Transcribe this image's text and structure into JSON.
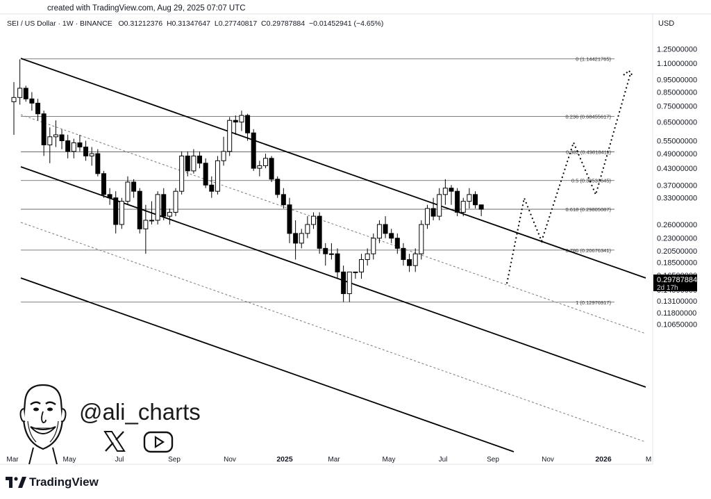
{
  "header": {
    "created": "created with TradingView.com, Aug 29, 2025 07:07 UTC",
    "symbol": "SEI / US Dollar · 1W · BINANCE",
    "open": "O0.31212376",
    "high": "H0.31347647",
    "low": "L0.27740817",
    "close": "C0.29787884",
    "change": "−0.01452941 (−4.65%)",
    "currency": "USD"
  },
  "branding": {
    "handle": "@ali_charts",
    "logo_text": "TradingView",
    "icons": [
      "x-logo-icon",
      "youtube-icon",
      "caricature-avatar"
    ]
  },
  "colors": {
    "up_body": "#ffffff",
    "down_body": "#000000",
    "price_tag": "#000000",
    "channel": "#000000"
  },
  "chart_data": {
    "type": "candlestick",
    "scale": "log",
    "y_ticks": [
      "1.25000000",
      "1.10000000",
      "0.95000000",
      "0.85000000",
      "0.75000000",
      "0.65000000",
      "0.55000000",
      "0.49000000",
      "0.43000000",
      "0.37000000",
      "0.33000000",
      "0.29787884",
      "0.26000000",
      "0.23000000",
      "0.20500000",
      "0.18500000",
      "0.16500000",
      "0.14500000",
      "0.13100000",
      "0.11800000",
      "0.10650000"
    ],
    "x_ticks": [
      "Mar",
      "May",
      "Jul",
      "Sep",
      "Nov",
      "2025",
      "Mar",
      "May",
      "Jul",
      "Sep",
      "Nov",
      "2026",
      "M"
    ],
    "fib_levels": [
      {
        "label": "0 (1.14421765)",
        "value": 1.14421765
      },
      {
        "label": "0.236 (0.68455617)",
        "value": 0.68455617
      },
      {
        "label": "0.382 (0.49818411)",
        "value": 0.49818411
      },
      {
        "label": "0.5 (0.38533645)",
        "value": 0.38533645
      },
      {
        "label": "0.618 (0.29805087)",
        "value": 0.29805087
      },
      {
        "label": "0.786 (0.20676341)",
        "value": 0.20676341
      },
      {
        "label": "1 (0.12976917)",
        "value": 0.12976917
      }
    ],
    "last_price": {
      "value": "0.29787884",
      "countdown": "2d 17h"
    },
    "candles": [
      {
        "o": 0.78,
        "h": 0.93,
        "l": 0.58,
        "c": 0.81
      },
      {
        "o": 0.81,
        "h": 1.14,
        "l": 0.76,
        "c": 0.88
      },
      {
        "o": 0.88,
        "h": 0.9,
        "l": 0.78,
        "c": 0.8
      },
      {
        "o": 0.8,
        "h": 0.85,
        "l": 0.72,
        "c": 0.77
      },
      {
        "o": 0.77,
        "h": 0.8,
        "l": 0.66,
        "c": 0.7
      },
      {
        "o": 0.7,
        "h": 0.72,
        "l": 0.48,
        "c": 0.53
      },
      {
        "o": 0.53,
        "h": 0.62,
        "l": 0.45,
        "c": 0.57
      },
      {
        "o": 0.57,
        "h": 0.66,
        "l": 0.52,
        "c": 0.58
      },
      {
        "o": 0.58,
        "h": 0.61,
        "l": 0.51,
        "c": 0.55
      },
      {
        "o": 0.55,
        "h": 0.58,
        "l": 0.47,
        "c": 0.5
      },
      {
        "o": 0.5,
        "h": 0.56,
        "l": 0.47,
        "c": 0.54
      },
      {
        "o": 0.54,
        "h": 0.58,
        "l": 0.5,
        "c": 0.52
      },
      {
        "o": 0.52,
        "h": 0.55,
        "l": 0.46,
        "c": 0.48
      },
      {
        "o": 0.48,
        "h": 0.52,
        "l": 0.44,
        "c": 0.49
      },
      {
        "o": 0.49,
        "h": 0.51,
        "l": 0.4,
        "c": 0.41
      },
      {
        "o": 0.41,
        "h": 0.42,
        "l": 0.33,
        "c": 0.34
      },
      {
        "o": 0.34,
        "h": 0.36,
        "l": 0.31,
        "c": 0.33
      },
      {
        "o": 0.33,
        "h": 0.35,
        "l": 0.24,
        "c": 0.26
      },
      {
        "o": 0.26,
        "h": 0.33,
        "l": 0.25,
        "c": 0.32
      },
      {
        "o": 0.32,
        "h": 0.4,
        "l": 0.31,
        "c": 0.38
      },
      {
        "o": 0.38,
        "h": 0.39,
        "l": 0.33,
        "c": 0.35
      },
      {
        "o": 0.35,
        "h": 0.36,
        "l": 0.24,
        "c": 0.25
      },
      {
        "o": 0.25,
        "h": 0.31,
        "l": 0.2,
        "c": 0.27
      },
      {
        "o": 0.27,
        "h": 0.32,
        "l": 0.26,
        "c": 0.27
      },
      {
        "o": 0.27,
        "h": 0.35,
        "l": 0.26,
        "c": 0.34
      },
      {
        "o": 0.34,
        "h": 0.36,
        "l": 0.27,
        "c": 0.28
      },
      {
        "o": 0.28,
        "h": 0.3,
        "l": 0.26,
        "c": 0.29
      },
      {
        "o": 0.29,
        "h": 0.36,
        "l": 0.28,
        "c": 0.35
      },
      {
        "o": 0.35,
        "h": 0.5,
        "l": 0.34,
        "c": 0.48
      },
      {
        "o": 0.48,
        "h": 0.5,
        "l": 0.4,
        "c": 0.42
      },
      {
        "o": 0.42,
        "h": 0.51,
        "l": 0.41,
        "c": 0.48
      },
      {
        "o": 0.48,
        "h": 0.5,
        "l": 0.43,
        "c": 0.45
      },
      {
        "o": 0.45,
        "h": 0.47,
        "l": 0.36,
        "c": 0.37
      },
      {
        "o": 0.37,
        "h": 0.4,
        "l": 0.33,
        "c": 0.35
      },
      {
        "o": 0.35,
        "h": 0.48,
        "l": 0.34,
        "c": 0.46
      },
      {
        "o": 0.46,
        "h": 0.57,
        "l": 0.44,
        "c": 0.5
      },
      {
        "o": 0.5,
        "h": 0.68,
        "l": 0.48,
        "c": 0.66
      },
      {
        "o": 0.66,
        "h": 0.69,
        "l": 0.58,
        "c": 0.65
      },
      {
        "o": 0.65,
        "h": 0.72,
        "l": 0.6,
        "c": 0.69
      },
      {
        "o": 0.69,
        "h": 0.7,
        "l": 0.55,
        "c": 0.59
      },
      {
        "o": 0.59,
        "h": 0.61,
        "l": 0.42,
        "c": 0.43
      },
      {
        "o": 0.43,
        "h": 0.46,
        "l": 0.4,
        "c": 0.44
      },
      {
        "o": 0.44,
        "h": 0.49,
        "l": 0.43,
        "c": 0.47
      },
      {
        "o": 0.47,
        "h": 0.48,
        "l": 0.38,
        "c": 0.39
      },
      {
        "o": 0.39,
        "h": 0.4,
        "l": 0.33,
        "c": 0.34
      },
      {
        "o": 0.34,
        "h": 0.36,
        "l": 0.3,
        "c": 0.31
      },
      {
        "o": 0.31,
        "h": 0.33,
        "l": 0.22,
        "c": 0.24
      },
      {
        "o": 0.24,
        "h": 0.27,
        "l": 0.19,
        "c": 0.22
      },
      {
        "o": 0.22,
        "h": 0.25,
        "l": 0.21,
        "c": 0.24
      },
      {
        "o": 0.24,
        "h": 0.28,
        "l": 0.23,
        "c": 0.26
      },
      {
        "o": 0.26,
        "h": 0.29,
        "l": 0.25,
        "c": 0.28
      },
      {
        "o": 0.28,
        "h": 0.29,
        "l": 0.2,
        "c": 0.21
      },
      {
        "o": 0.21,
        "h": 0.22,
        "l": 0.18,
        "c": 0.2
      },
      {
        "o": 0.2,
        "h": 0.22,
        "l": 0.19,
        "c": 0.2
      },
      {
        "o": 0.2,
        "h": 0.21,
        "l": 0.16,
        "c": 0.17
      },
      {
        "o": 0.17,
        "h": 0.18,
        "l": 0.13,
        "c": 0.14
      },
      {
        "o": 0.14,
        "h": 0.17,
        "l": 0.13,
        "c": 0.17
      },
      {
        "o": 0.17,
        "h": 0.17,
        "l": 0.16,
        "c": 0.17
      },
      {
        "o": 0.17,
        "h": 0.2,
        "l": 0.16,
        "c": 0.19
      },
      {
        "o": 0.19,
        "h": 0.21,
        "l": 0.18,
        "c": 0.2
      },
      {
        "o": 0.2,
        "h": 0.24,
        "l": 0.19,
        "c": 0.23
      },
      {
        "o": 0.23,
        "h": 0.27,
        "l": 0.22,
        "c": 0.26
      },
      {
        "o": 0.26,
        "h": 0.28,
        "l": 0.23,
        "c": 0.24
      },
      {
        "o": 0.24,
        "h": 0.25,
        "l": 0.22,
        "c": 0.23
      },
      {
        "o": 0.23,
        "h": 0.24,
        "l": 0.2,
        "c": 0.21
      },
      {
        "o": 0.21,
        "h": 0.22,
        "l": 0.18,
        "c": 0.19
      },
      {
        "o": 0.19,
        "h": 0.2,
        "l": 0.17,
        "c": 0.18
      },
      {
        "o": 0.18,
        "h": 0.21,
        "l": 0.17,
        "c": 0.2
      },
      {
        "o": 0.2,
        "h": 0.27,
        "l": 0.19,
        "c": 0.26
      },
      {
        "o": 0.26,
        "h": 0.31,
        "l": 0.25,
        "c": 0.3
      },
      {
        "o": 0.3,
        "h": 0.33,
        "l": 0.27,
        "c": 0.28
      },
      {
        "o": 0.28,
        "h": 0.36,
        "l": 0.27,
        "c": 0.34
      },
      {
        "o": 0.34,
        "h": 0.39,
        "l": 0.31,
        "c": 0.36
      },
      {
        "o": 0.36,
        "h": 0.37,
        "l": 0.31,
        "c": 0.35
      },
      {
        "o": 0.35,
        "h": 0.36,
        "l": 0.28,
        "c": 0.29
      },
      {
        "o": 0.29,
        "h": 0.33,
        "l": 0.28,
        "c": 0.32
      },
      {
        "o": 0.32,
        "h": 0.36,
        "l": 0.3,
        "c": 0.34
      },
      {
        "o": 0.34,
        "h": 0.35,
        "l": 0.3,
        "c": 0.31
      },
      {
        "o": 0.31,
        "h": 0.31,
        "l": 0.28,
        "c": 0.298
      }
    ]
  }
}
